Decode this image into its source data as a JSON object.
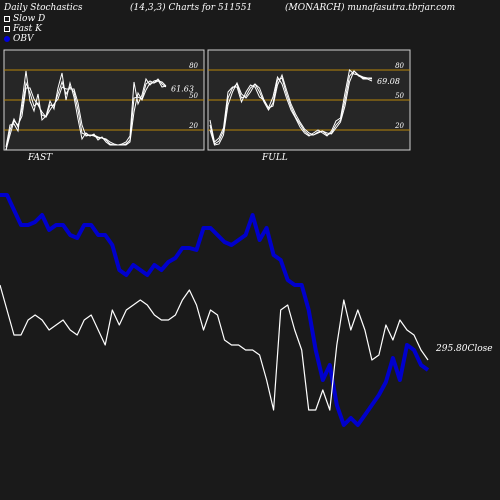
{
  "header": {
    "left": "Daily Stochastics",
    "center": "(14,3,3) Charts for 511551",
    "right": "(MONARCH) munafasutra.tbrjar.com"
  },
  "legend": [
    {
      "label": "Slow  D",
      "color": "#ffffff"
    },
    {
      "label": "Fast K",
      "color": "#ffffff"
    },
    {
      "label": "OBV",
      "color": "#0000dd"
    }
  ],
  "colors": {
    "background": "#1a1a1a",
    "panel": "#262626",
    "level_line": "#b8860b",
    "obv": "#0000cc",
    "price": "#ffffff"
  },
  "chart_data": [
    {
      "type": "line",
      "title": "FAST",
      "ylim": [
        0,
        100
      ],
      "yticks": [
        "80",
        "50",
        "20"
      ],
      "last_value_label": "61.63",
      "series": [
        {
          "values": [
            3,
            25,
            26,
            19,
            48,
            79,
            49,
            39,
            56,
            30,
            34,
            49,
            41,
            62,
            77,
            50,
            67,
            53,
            31,
            11,
            17,
            14,
            16,
            10,
            13,
            8,
            5,
            5,
            5,
            6,
            8,
            14,
            68,
            46,
            55,
            71,
            65,
            69,
            70,
            63,
            64
          ]
        },
        {
          "values": [
            0,
            20,
            31,
            23,
            41,
            67,
            57,
            44,
            47,
            35,
            33,
            45,
            44,
            56,
            68,
            56,
            63,
            58,
            40,
            17,
            15,
            15,
            14,
            12,
            12,
            10,
            6,
            5,
            5,
            5,
            6,
            10,
            52,
            53,
            51,
            66,
            69,
            67,
            71,
            66,
            63
          ]
        },
        {
          "values": [
            0,
            15,
            29,
            25,
            34,
            62,
            62,
            51,
            45,
            38,
            33,
            40,
            46,
            51,
            63,
            61,
            61,
            61,
            47,
            25,
            14,
            15,
            15,
            13,
            12,
            11,
            8,
            6,
            5,
            5,
            5,
            8,
            38,
            57,
            50,
            60,
            67,
            67,
            69,
            68,
            64
          ]
        }
      ]
    },
    {
      "type": "line",
      "title": "FULL",
      "ylim": [
        0,
        100
      ],
      "yticks": [
        "80",
        "50",
        "20"
      ],
      "last_value_label": "69.08",
      "series": [
        {
          "values": [
            30,
            8,
            12,
            22,
            58,
            63,
            63,
            48,
            58,
            65,
            63,
            53,
            50,
            42,
            53,
            73,
            66,
            52,
            40,
            32,
            23,
            17,
            14,
            17,
            20,
            17,
            14,
            19,
            29,
            32,
            57,
            80,
            76,
            75,
            73,
            72,
            72
          ]
        },
        {
          "values": [
            25,
            6,
            9,
            19,
            52,
            62,
            66,
            52,
            54,
            62,
            66,
            58,
            48,
            40,
            47,
            70,
            72,
            56,
            43,
            33,
            26,
            19,
            15,
            15,
            18,
            19,
            15,
            17,
            25,
            30,
            50,
            74,
            79,
            74,
            72,
            72,
            71
          ]
        },
        {
          "values": [
            20,
            5,
            6,
            15,
            45,
            58,
            67,
            56,
            52,
            58,
            66,
            62,
            50,
            42,
            44,
            65,
            75,
            60,
            46,
            36,
            28,
            21,
            17,
            15,
            17,
            19,
            17,
            16,
            22,
            28,
            44,
            68,
            79,
            75,
            71,
            71,
            69
          ]
        }
      ]
    },
    {
      "type": "line",
      "series": [
        {
          "name": "OBV",
          "values": [
            195,
            195,
            210,
            225,
            225,
            222,
            215,
            230,
            225,
            225,
            235,
            238,
            225,
            225,
            235,
            235,
            245,
            270,
            275,
            265,
            270,
            275,
            265,
            270,
            262,
            258,
            248,
            248,
            250,
            228,
            228,
            235,
            242,
            245,
            240,
            235,
            215,
            240,
            228,
            255,
            260,
            280,
            285,
            285,
            310,
            350,
            380,
            365,
            405,
            425,
            418,
            425,
            415,
            405,
            395,
            382,
            358,
            380,
            345,
            350,
            365,
            370
          ]
        },
        {
          "name": "Price",
          "last_value_label": "295.80Close",
          "values": [
            285,
            310,
            335,
            335,
            320,
            315,
            320,
            330,
            325,
            320,
            330,
            335,
            320,
            315,
            330,
            345,
            310,
            325,
            310,
            305,
            300,
            305,
            315,
            320,
            320,
            315,
            300,
            290,
            305,
            330,
            310,
            315,
            340,
            345,
            345,
            350,
            350,
            355,
            380,
            410,
            310,
            305,
            330,
            350,
            410,
            410,
            390,
            410,
            345,
            300,
            330,
            310,
            330,
            360,
            355,
            325,
            340,
            320,
            330,
            335,
            350,
            360
          ]
        }
      ],
      "close_label": "295.80Close"
    }
  ]
}
